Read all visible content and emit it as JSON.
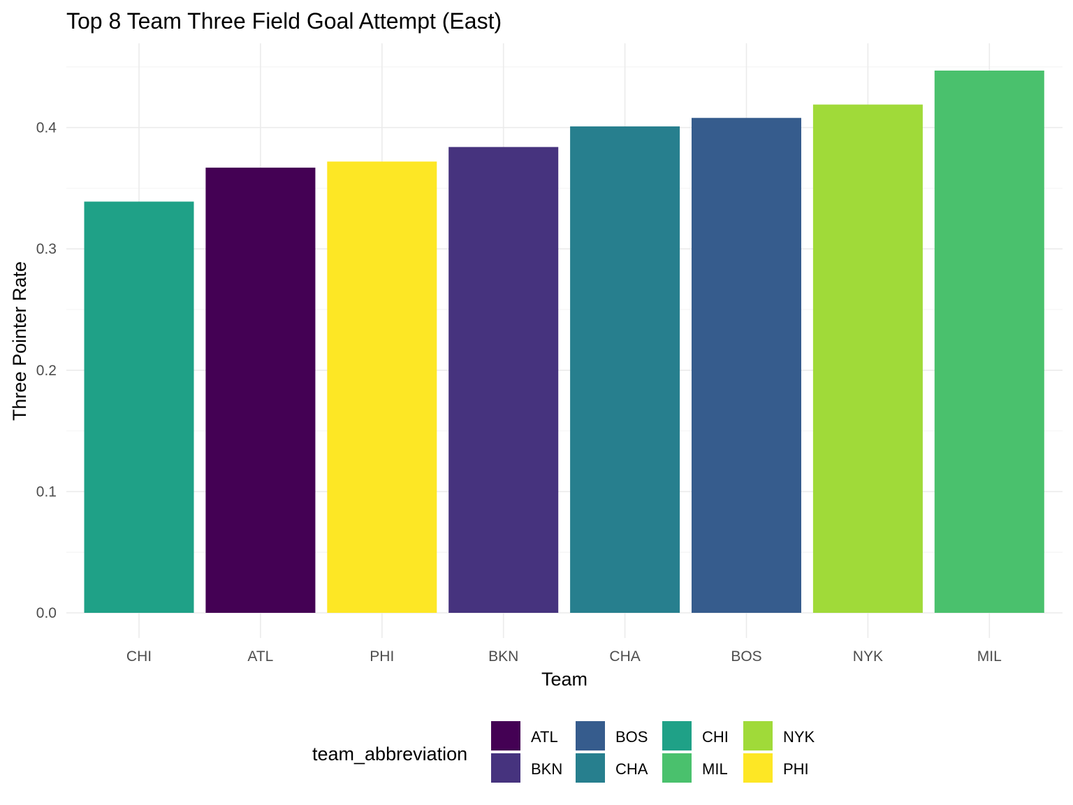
{
  "chart_data": {
    "type": "bar",
    "title": "Top 8 Team Three Field Goal Attempt (East)",
    "xlabel": "Team",
    "ylabel": "Three Pointer Rate",
    "categories": [
      "CHI",
      "ATL",
      "PHI",
      "BKN",
      "CHA",
      "BOS",
      "NYK",
      "MIL"
    ],
    "values": [
      0.339,
      0.367,
      0.372,
      0.384,
      0.401,
      0.408,
      0.419,
      0.447
    ],
    "ylim": [
      0,
      0.45
    ],
    "yticks": [
      0.0,
      0.1,
      0.2,
      0.3,
      0.4
    ],
    "ytick_labels": [
      "0.0",
      "0.1",
      "0.2",
      "0.3",
      "0.4"
    ],
    "grid": true,
    "legend": {
      "title": "team_abbreviation",
      "placement": "bottom",
      "items": [
        {
          "label": "ATL",
          "color": "#440154"
        },
        {
          "label": "BKN",
          "color": "#46337E"
        },
        {
          "label": "BOS",
          "color": "#365C8D"
        },
        {
          "label": "CHA",
          "color": "#277F8E"
        },
        {
          "label": "CHI",
          "color": "#1FA187"
        },
        {
          "label": "MIL",
          "color": "#4AC16D"
        },
        {
          "label": "NYK",
          "color": "#A0DA39"
        },
        {
          "label": "PHI",
          "color": "#FDE725"
        }
      ]
    }
  }
}
